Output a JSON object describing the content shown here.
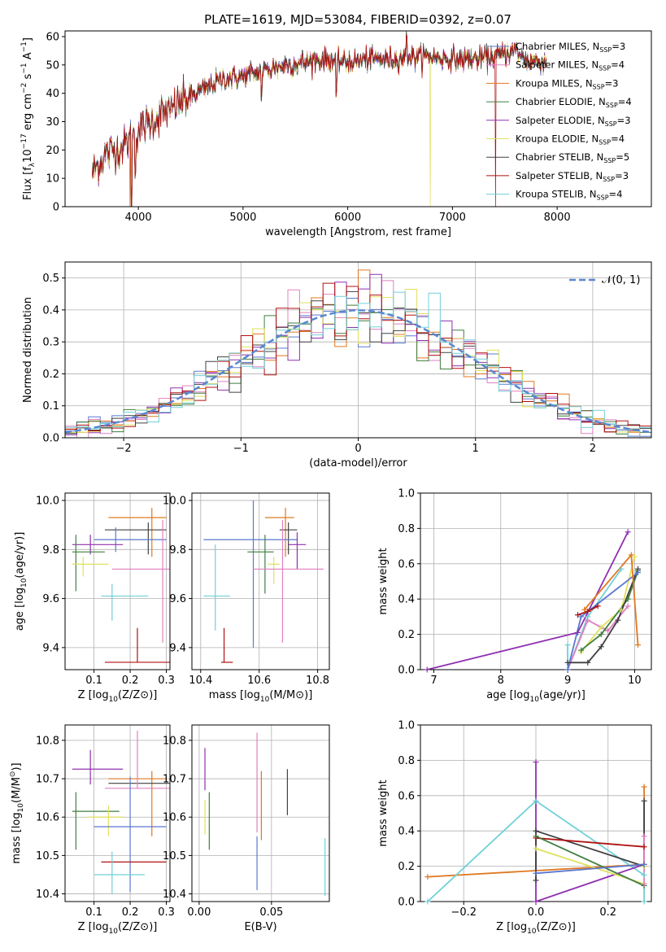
{
  "figure_title": "PLATE=1619, MJD=53084, FIBERID=0392, z=0.07",
  "colors": {
    "chabrier_miles": "#5a78d0",
    "salpeter_miles": "#e080c0",
    "kroupa_miles": "#e07820",
    "chabrier_elodie": "#3f7f3f",
    "salpeter_elodie": "#9030b0",
    "kroupa_elodie": "#e0e060",
    "chabrier_stelib": "#404040",
    "salpeter_stelib": "#b01010",
    "kroupa_stelib": "#70d0d8",
    "normal_curve": "#5a87d0"
  },
  "legend_entries": [
    {
      "label": "Chabrier MILES, N",
      "sub": "SSP",
      "tail": "=3",
      "color": "#5a78d0"
    },
    {
      "label": "Salpeter MILES, N",
      "sub": "SSP",
      "tail": "=4",
      "color": "#e080c0"
    },
    {
      "label": "Kroupa MILES, N",
      "sub": "SSP",
      "tail": "=3",
      "color": "#e07820"
    },
    {
      "label": "Chabrier ELODIE, N",
      "sub": "SSP",
      "tail": "=4",
      "color": "#3f7f3f"
    },
    {
      "label": "Salpeter ELODIE, N",
      "sub": "SSP",
      "tail": "=3",
      "color": "#9030b0"
    },
    {
      "label": "Kroupa ELODIE, N",
      "sub": "SSP",
      "tail": "=4",
      "color": "#e0e060"
    },
    {
      "label": "Chabrier STELIB, N",
      "sub": "SSP",
      "tail": "=5",
      "color": "#404040"
    },
    {
      "label": "Salpeter STELIB, N",
      "sub": "SSP",
      "tail": "=3",
      "color": "#b01010"
    },
    {
      "label": "Kroupa STELIB, N",
      "sub": "SSP",
      "tail": "=4",
      "color": "#70d0d8"
    }
  ],
  "chart_data": [
    {
      "id": "spectrum",
      "type": "line",
      "xlabel": "wavelength [Angstrom, rest frame]",
      "ylabel_parts": [
        "Flux [f",
        "λ",
        "10",
        "−17",
        " erg cm",
        "−2",
        " s",
        "−1",
        " A",
        "−1",
        "]"
      ],
      "xlim": [
        3300,
        8900
      ],
      "ylim": [
        0,
        62
      ],
      "xticks": [
        4000,
        5000,
        6000,
        7000,
        8000
      ],
      "yticks": [
        0,
        10,
        20,
        30,
        40,
        50,
        60
      ],
      "continuum": [
        {
          "x": 3560,
          "y": 12
        },
        {
          "x": 3700,
          "y": 19
        },
        {
          "x": 3850,
          "y": 21
        },
        {
          "x": 4000,
          "y": 27
        },
        {
          "x": 4200,
          "y": 32
        },
        {
          "x": 4400,
          "y": 37
        },
        {
          "x": 4600,
          "y": 41
        },
        {
          "x": 4800,
          "y": 45
        },
        {
          "x": 5000,
          "y": 46
        },
        {
          "x": 5200,
          "y": 48
        },
        {
          "x": 5400,
          "y": 50
        },
        {
          "x": 5600,
          "y": 51
        },
        {
          "x": 5800,
          "y": 52
        },
        {
          "x": 6000,
          "y": 51
        },
        {
          "x": 6200,
          "y": 52
        },
        {
          "x": 6400,
          "y": 52
        },
        {
          "x": 6600,
          "y": 53
        },
        {
          "x": 6800,
          "y": 53
        },
        {
          "x": 7000,
          "y": 52
        },
        {
          "x": 7200,
          "y": 52
        },
        {
          "x": 7400,
          "y": 53
        },
        {
          "x": 7600,
          "y": 55
        },
        {
          "x": 7700,
          "y": 52
        },
        {
          "x": 7900,
          "y": 51
        }
      ],
      "absorption_features": [
        {
          "x": 3934,
          "depth": 22
        },
        {
          "x": 3969,
          "depth": 12
        },
        {
          "x": 4300,
          "depth": 6
        },
        {
          "x": 5175,
          "depth": 8
        },
        {
          "x": 5893,
          "depth": 14
        },
        {
          "x": 6563,
          "depth": -8
        }
      ],
      "model_drops": [
        {
          "x": 3920,
          "to": 0,
          "color": "#e07820"
        },
        {
          "x": 6790,
          "to": 0,
          "color": "#e0e060"
        },
        {
          "x": 7410,
          "to": 0,
          "color": "#b01010"
        }
      ]
    },
    {
      "id": "residuals",
      "type": "histogram",
      "xlabel": "(data-model)/error",
      "ylabel": "Normed distribution",
      "xlim": [
        -2.5,
        2.5
      ],
      "ylim": [
        0,
        0.55
      ],
      "xticks": [
        -2,
        -1,
        0,
        1,
        2
      ],
      "yticks": [
        0.0,
        0.1,
        0.2,
        0.3,
        0.4,
        0.5
      ],
      "legend_label": "𝒩(0, 1)",
      "bin_width": 0.1,
      "reference": "normal(0,1)"
    },
    {
      "id": "age_vs_Z",
      "type": "errorbar",
      "xlabel_parts": [
        "Z [log",
        "10",
        "(Z/Z",
        "⊙",
        ")]"
      ],
      "ylabel_parts": [
        "age  [log",
        "10",
        "(age/yr)]"
      ],
      "xlim": [
        0.02,
        0.31
      ],
      "ylim": [
        9.31,
        10.03
      ],
      "xticks": [
        0.1,
        0.2,
        0.3
      ],
      "yticks": [
        9.4,
        9.6,
        9.8,
        10.0
      ],
      "points": [
        {
          "color": "#e07820",
          "x": 0.26,
          "y": 9.93,
          "xerr": [
            0.12,
            0.04
          ],
          "yerr": [
            0.16,
            0.04
          ]
        },
        {
          "color": "#404040",
          "x": 0.25,
          "y": 9.88,
          "xerr": [
            0.12,
            0.05
          ],
          "yerr": [
            0.1,
            0.03
          ]
        },
        {
          "color": "#5a78d0",
          "x": 0.16,
          "y": 9.84,
          "xerr": [
            0.06,
            0.14
          ],
          "yerr": [
            0.05,
            0.05
          ]
        },
        {
          "color": "#9030b0",
          "x": 0.09,
          "y": 9.82,
          "xerr": [
            0.05,
            0.09
          ],
          "yerr": [
            0.04,
            0.04
          ]
        },
        {
          "color": "#3f7f3f",
          "x": 0.05,
          "y": 9.79,
          "xerr": [
            0.01,
            0.08
          ],
          "yerr": [
            0.16,
            0.07
          ]
        },
        {
          "color": "#e0e060",
          "x": 0.07,
          "y": 9.74,
          "xerr": [
            0.03,
            0.07
          ],
          "yerr": [
            0.05,
            0.03
          ]
        },
        {
          "color": "#e080c0",
          "x": 0.29,
          "y": 9.72,
          "xerr": [
            0.14,
            0.02
          ],
          "yerr": [
            0.3,
            0.2
          ]
        },
        {
          "color": "#70d0d8",
          "x": 0.15,
          "y": 9.61,
          "xerr": [
            0.03,
            0.1
          ],
          "yerr": [
            0.1,
            0.05
          ]
        },
        {
          "color": "#b01010",
          "x": 0.22,
          "y": 9.34,
          "xerr": [
            0.09,
            0.09
          ],
          "yerr": [
            0.0,
            0.14
          ]
        }
      ]
    },
    {
      "id": "age_vs_mass",
      "type": "errorbar",
      "xlabel_parts": [
        "mass [log",
        "10",
        "(M/M",
        "⊙",
        ")]"
      ],
      "xlim": [
        10.37,
        10.84
      ],
      "ylim": [
        9.31,
        10.03
      ],
      "xticks": [
        10.4,
        10.6,
        10.8
      ],
      "yticks": [
        9.4,
        9.6,
        9.8,
        10.0
      ],
      "points": [
        {
          "color": "#e07820",
          "x": 10.69,
          "y": 9.93,
          "xerr": [
            0.07,
            0.03
          ],
          "yerr": [
            0.16,
            0.04
          ]
        },
        {
          "color": "#404040",
          "x": 10.7,
          "y": 9.88,
          "xerr": [
            0.03,
            0.03
          ],
          "yerr": [
            0.1,
            0.03
          ]
        },
        {
          "color": "#5a78d0",
          "x": 10.58,
          "y": 9.84,
          "xerr": [
            0.17,
            0.15
          ],
          "yerr": [
            0.44,
            0.16
          ]
        },
        {
          "color": "#9030b0",
          "x": 10.73,
          "y": 9.82,
          "xerr": [
            0.03,
            0.03
          ],
          "yerr": [
            0.1,
            0.05
          ]
        },
        {
          "color": "#3f7f3f",
          "x": 10.62,
          "y": 9.79,
          "xerr": [
            0.06,
            0.03
          ],
          "yerr": [
            0.17,
            0.07
          ]
        },
        {
          "color": "#e0e060",
          "x": 10.65,
          "y": 9.74,
          "xerr": [
            0.02,
            0.02
          ],
          "yerr": [
            0.08,
            0.03
          ]
        },
        {
          "color": "#e080c0",
          "x": 10.68,
          "y": 9.72,
          "xerr": [
            0.1,
            0.14
          ],
          "yerr": [
            0.3,
            0.2
          ]
        },
        {
          "color": "#70d0d8",
          "x": 10.45,
          "y": 9.61,
          "xerr": [
            0.04,
            0.05
          ],
          "yerr": [
            0.14,
            0.21
          ]
        },
        {
          "color": "#b01010",
          "x": 10.48,
          "y": 9.34,
          "xerr": [
            0.01,
            0.03
          ],
          "yerr": [
            0.0,
            0.14
          ]
        }
      ]
    },
    {
      "id": "weights_vs_age",
      "type": "line",
      "xlabel_parts": [
        "age  [log",
        "10",
        "(age/yr)]"
      ],
      "ylabel": "mass weight",
      "xlim": [
        6.8,
        10.25
      ],
      "ylim": [
        0,
        1
      ],
      "xticks": [
        7,
        8,
        9,
        10
      ],
      "yticks": [
        0.0,
        0.2,
        0.4,
        0.6,
        0.8,
        1.0
      ],
      "series": [
        {
          "color": "#9030b0",
          "x": [
            6.9,
            9.15,
            9.9
          ],
          "y": [
            0.0,
            0.21,
            0.78
          ]
        },
        {
          "color": "#70d0d8",
          "x": [
            9.0,
            9.0,
            9.3,
            9.8
          ],
          "y": [
            0.14,
            0.0,
            0.3,
            0.57
          ]
        },
        {
          "color": "#e080c0",
          "x": [
            9.0,
            9.3,
            9.6,
            9.9
          ],
          "y": [
            0.0,
            0.28,
            0.22,
            0.36
          ]
        },
        {
          "color": "#e0e060",
          "x": [
            9.2,
            9.5,
            9.8,
            10.0
          ],
          "y": [
            0.1,
            0.24,
            0.34,
            0.64
          ]
        },
        {
          "color": "#3f7f3f",
          "x": [
            9.2,
            9.5,
            9.9,
            10.05
          ],
          "y": [
            0.11,
            0.2,
            0.4,
            0.56
          ]
        },
        {
          "color": "#404040",
          "x": [
            9.0,
            9.3,
            9.5,
            9.75,
            10.05
          ],
          "y": [
            0.04,
            0.04,
            0.13,
            0.28,
            0.57
          ]
        },
        {
          "color": "#5a78d0",
          "x": [
            9.0,
            9.2,
            10.05
          ],
          "y": [
            0.0,
            0.3,
            0.55
          ]
        },
        {
          "color": "#b01010",
          "x": [
            9.15,
            9.3,
            9.45
          ],
          "y": [
            0.31,
            0.33,
            0.36
          ]
        },
        {
          "color": "#e07820",
          "x": [
            9.25,
            9.95,
            10.05
          ],
          "y": [
            0.34,
            0.65,
            0.14
          ]
        }
      ]
    },
    {
      "id": "mass_vs_Z",
      "type": "errorbar",
      "xlabel_parts": [
        "Z [log",
        "10",
        "(Z/Z",
        "⊙",
        ")]"
      ],
      "ylabel_parts": [
        "mass [log",
        "10",
        "(M/M",
        "⊙",
        ")]"
      ],
      "xlim": [
        0.02,
        0.31
      ],
      "ylim": [
        10.38,
        10.84
      ],
      "xticks": [
        0.1,
        0.2,
        0.3
      ],
      "yticks": [
        10.4,
        10.5,
        10.6,
        10.7,
        10.8
      ],
      "points": [
        {
          "color": "#9030b0",
          "x": 0.09,
          "y": 10.725,
          "xerr": [
            0.05,
            0.09
          ],
          "yerr": [
            0.04,
            0.05
          ]
        },
        {
          "color": "#e07820",
          "x": 0.26,
          "y": 10.7,
          "xerr": [
            0.12,
            0.04
          ],
          "yerr": [
            0.15,
            0.02
          ]
        },
        {
          "color": "#404040",
          "x": 0.22,
          "y": 10.688,
          "xerr": [
            0.08,
            0.09
          ],
          "yerr": [
            0.0,
            0.0
          ]
        },
        {
          "color": "#e080c0",
          "x": 0.22,
          "y": 10.675,
          "xerr": [
            0.09,
            0.09
          ],
          "yerr": [
            0.0,
            0.15
          ]
        },
        {
          "color": "#3f7f3f",
          "x": 0.05,
          "y": 10.615,
          "xerr": [
            0.01,
            0.12
          ],
          "yerr": [
            0.1,
            0.05
          ]
        },
        {
          "color": "#e0e060",
          "x": 0.14,
          "y": 10.6,
          "xerr": [
            0.06,
            0.04
          ],
          "yerr": [
            0.05,
            0.03
          ]
        },
        {
          "color": "#5a78d0",
          "x": 0.2,
          "y": 10.575,
          "xerr": [
            0.1,
            0.1
          ],
          "yerr": [
            0.17,
            0.13
          ]
        },
        {
          "color": "#b01010",
          "x": 0.21,
          "y": 10.483,
          "xerr": [
            0.09,
            0.09
          ],
          "yerr": [
            0.0,
            0.0
          ]
        },
        {
          "color": "#70d0d8",
          "x": 0.15,
          "y": 10.45,
          "xerr": [
            0.05,
            0.09
          ],
          "yerr": [
            0.05,
            0.06
          ]
        }
      ]
    },
    {
      "id": "mass_vs_ebv",
      "type": "errorbar",
      "xlabel": "E(B-V)",
      "xlim": [
        -0.005,
        0.09
      ],
      "ylim": [
        10.38,
        10.84
      ],
      "xticks": [
        0.0,
        0.05
      ],
      "yticks": [
        10.4,
        10.5,
        10.6,
        10.7,
        10.8
      ],
      "points": [
        {
          "color": "#9030b0",
          "x": 0.004,
          "y": 10.725,
          "yerr": [
            0.055,
            0.055
          ]
        },
        {
          "color": "#e0e060",
          "x": 0.004,
          "y": 10.6,
          "yerr": [
            0.045,
            0.045
          ]
        },
        {
          "color": "#3f7f3f",
          "x": 0.007,
          "y": 10.59,
          "yerr": [
            0.075,
            0.075
          ]
        },
        {
          "color": "#e080c0",
          "x": 0.04,
          "y": 10.69,
          "yerr": [
            0.13,
            0.13
          ]
        },
        {
          "color": "#e07820",
          "x": 0.043,
          "y": 10.63,
          "yerr": [
            0.09,
            0.09
          ]
        },
        {
          "color": "#5a78d0",
          "x": 0.04,
          "y": 10.48,
          "yerr": [
            0.07,
            0.07
          ]
        },
        {
          "color": "#404040",
          "x": 0.061,
          "y": 10.665,
          "yerr": [
            0.06,
            0.06
          ]
        },
        {
          "color": "#70d0d8",
          "x": 0.087,
          "y": 10.47,
          "yerr": [
            0.075,
            0.075
          ]
        }
      ]
    },
    {
      "id": "weights_vs_Z",
      "type": "line",
      "xlabel_parts": [
        "Z [log",
        "10",
        "(Z/Z",
        "⊙",
        ")]"
      ],
      "ylabel": "mass weight",
      "xlim": [
        -0.32,
        0.32
      ],
      "ylim": [
        0,
        1
      ],
      "xticks": [
        -0.2,
        0.0,
        0.2
      ],
      "yticks": [
        0.0,
        0.2,
        0.4,
        0.6,
        0.8,
        1.0
      ],
      "series": [
        {
          "color": "#e07820",
          "x": [
            -0.3,
            0.3,
            0.3
          ],
          "y": [
            0.14,
            0.21,
            0.65
          ]
        },
        {
          "color": "#70d0d8",
          "x": [
            -0.3,
            0.0,
            0.3,
            0.3
          ],
          "y": [
            0.0,
            0.57,
            0.15,
            0.0
          ]
        },
        {
          "color": "#9030b0",
          "x": [
            0.0,
            0.0,
            0.3
          ],
          "y": [
            0.79,
            0.0,
            0.21
          ]
        },
        {
          "color": "#404040",
          "x": [
            0.0,
            0.0,
            0.3,
            0.3
          ],
          "y": [
            0.12,
            0.4,
            0.2,
            0.57
          ]
        },
        {
          "color": "#b01010",
          "x": [
            0.0,
            0.3
          ],
          "y": [
            0.36,
            0.31
          ]
        },
        {
          "color": "#e0e060",
          "x": [
            0.0,
            0.3,
            0.3
          ],
          "y": [
            0.3,
            0.1,
            0.2
          ]
        },
        {
          "color": "#3f7f3f",
          "x": [
            0.0,
            0.3
          ],
          "y": [
            0.37,
            0.09
          ]
        },
        {
          "color": "#5a78d0",
          "x": [
            0.0,
            0.3
          ],
          "y": [
            0.16,
            0.21
          ]
        },
        {
          "color": "#e080c0",
          "x": [
            0.3,
            0.3
          ],
          "y": [
            0.1,
            0.37
          ]
        }
      ]
    }
  ]
}
